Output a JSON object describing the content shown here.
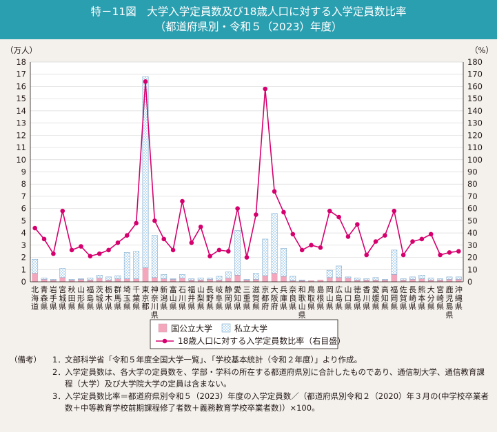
{
  "figure": {
    "title": "特－11図　大学入学定員数及び18歳人口に対する入学定員数比率",
    "subtitle": "（都道府県別・令和５（2023）年度）"
  },
  "chart_data": {
    "type": "bar",
    "stacked": true,
    "left_axis": {
      "unit": "（万人）",
      "min": 0,
      "max": 18,
      "step": 1
    },
    "right_axis": {
      "unit": "（%）",
      "min": 0,
      "max": 180,
      "step": 10
    },
    "categories": [
      "北海道",
      "青森県",
      "岩手県",
      "宮城県",
      "秋田県",
      "山形県",
      "福島県",
      "茨城県",
      "栃木県",
      "群馬県",
      "埼玉県",
      "千葉県",
      "東京都",
      "神奈川県",
      "新潟県",
      "富山県",
      "石川県",
      "福井県",
      "山梨県",
      "長野県",
      "岐阜県",
      "静岡県",
      "愛知県",
      "三重県",
      "滋賀県",
      "京都府",
      "大阪府",
      "兵庫県",
      "奈良県",
      "和歌山県",
      "鳥取県",
      "島根県",
      "岡山県",
      "広島県",
      "山口県",
      "徳島県",
      "香川県",
      "愛媛県",
      "高知県",
      "福岡県",
      "佐賀県",
      "長崎県",
      "熊本県",
      "大分県",
      "宮崎県",
      "鹿児島県",
      "沖縄県"
    ],
    "series": [
      {
        "name": "国公立大学",
        "type": "bar",
        "axis": "left",
        "color": "#f4a6bd",
        "values": [
          0.7,
          0.2,
          0.15,
          0.35,
          0.15,
          0.2,
          0.15,
          0.3,
          0.15,
          0.25,
          0.25,
          0.25,
          1.15,
          0.35,
          0.25,
          0.2,
          0.3,
          0.15,
          0.15,
          0.2,
          0.15,
          0.3,
          0.55,
          0.15,
          0.2,
          0.5,
          0.7,
          0.45,
          0.1,
          0.1,
          0.1,
          0.15,
          0.35,
          0.35,
          0.3,
          0.15,
          0.15,
          0.15,
          0.15,
          0.6,
          0.15,
          0.2,
          0.25,
          0.15,
          0.15,
          0.2,
          0.2
        ]
      },
      {
        "name": "私立大学",
        "type": "bar",
        "axis": "left",
        "color": "#bfdcf2",
        "values": [
          1.15,
          0.1,
          0.05,
          0.75,
          0.05,
          0.05,
          0.15,
          0.25,
          0.25,
          0.25,
          2.15,
          2.25,
          15.65,
          3.45,
          0.35,
          0.05,
          0.3,
          0.1,
          0.15,
          0.1,
          0.3,
          0.5,
          3.65,
          0.05,
          0.5,
          3.0,
          4.9,
          2.3,
          0.35,
          0.05,
          0.0,
          0.0,
          0.6,
          0.95,
          0.1,
          0.15,
          0.1,
          0.2,
          0.05,
          2.0,
          0.1,
          0.2,
          0.3,
          0.15,
          0.1,
          0.2,
          0.2
        ]
      },
      {
        "name": "18歳人口に対する入学定員数比率（右目盛）",
        "type": "line",
        "axis": "right",
        "color": "#d5006e",
        "values": [
          44,
          35,
          23,
          58,
          26,
          29,
          21,
          23,
          26,
          32,
          38,
          48,
          164,
          50,
          35,
          26,
          66,
          32,
          45,
          21,
          26,
          25,
          60,
          20,
          55,
          158,
          74,
          57,
          39,
          26,
          30,
          28,
          58,
          53,
          37,
          47,
          22,
          33,
          38,
          58,
          22,
          33,
          35,
          39,
          22,
          24,
          25
        ]
      }
    ]
  },
  "notes": {
    "label": "（備考）",
    "items": [
      {
        "num": "1．",
        "text": "文部科学省「令和５年度全国大学一覧」、「学校基本統計（令和２年度）」より作成。"
      },
      {
        "num": "2．",
        "text": "入学定員数は、各大学の定員数を、学部・学科の所在する都道府県別に合計したものであり、通信制大学、通信教育課程（大学）及び大学院大学の定員は含まない。"
      },
      {
        "num": "3．",
        "text": "入学定員数比率＝都道府県別令和５（2023）年度の入学定員数／（都道府県別令和２（2020）年３月の(中学校卒業者数＋中等教育学校前期課程修了者数＋義務教育学校卒業者数)）×100。"
      }
    ]
  }
}
